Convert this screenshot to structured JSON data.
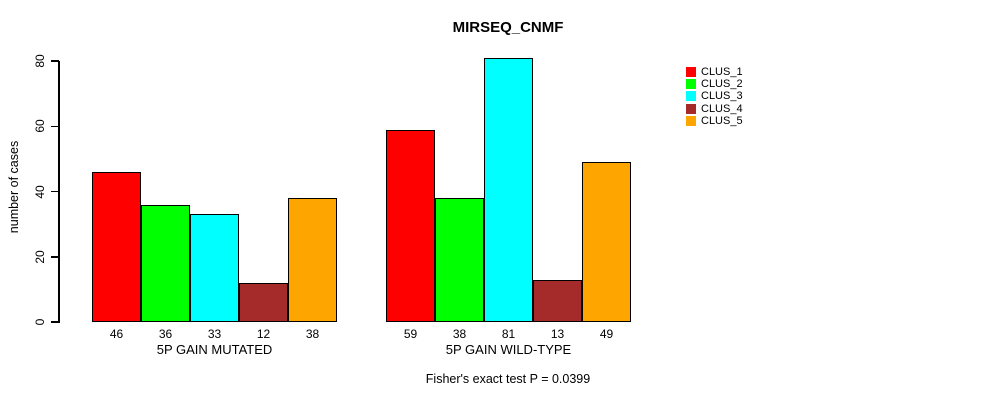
{
  "title": "MIRSEQ_CNMF",
  "y_axis": {
    "label": "number of cases",
    "ticks": [
      "0",
      "20",
      "40",
      "60",
      "80"
    ]
  },
  "footer": "Fisher's exact test P = 0.0399",
  "legend": {
    "items": [
      {
        "label": "CLUS_1",
        "color": "#FF0000"
      },
      {
        "label": "CLUS_2",
        "color": "#00FF00"
      },
      {
        "label": "CLUS_3",
        "color": "#00FFFF"
      },
      {
        "label": "CLUS_4",
        "color": "#A52A2A"
      },
      {
        "label": "CLUS_5",
        "color": "#FFA500"
      }
    ]
  },
  "chart_data": {
    "type": "bar",
    "title": "MIRSEQ_CNMF",
    "xlabel": "",
    "ylabel": "number of cases",
    "ylim": [
      0,
      80
    ],
    "yticks": [
      0,
      20,
      40,
      60,
      80
    ],
    "categories": [
      "5P GAIN MUTATED",
      "5P GAIN WILD-TYPE"
    ],
    "series": [
      {
        "name": "CLUS_1",
        "color": "#FF0000",
        "values": [
          46,
          59
        ]
      },
      {
        "name": "CLUS_2",
        "color": "#00FF00",
        "values": [
          36,
          38
        ]
      },
      {
        "name": "CLUS_3",
        "color": "#00FFFF",
        "values": [
          33,
          81
        ]
      },
      {
        "name": "CLUS_4",
        "color": "#A52A2A",
        "values": [
          12,
          13
        ]
      },
      {
        "name": "CLUS_5",
        "color": "#FFA500",
        "values": [
          38,
          49
        ]
      }
    ],
    "bar_value_labels": [
      [
        46,
        36,
        33,
        12,
        38
      ],
      [
        59,
        38,
        81,
        13,
        49
      ]
    ],
    "annotation": "Fisher's exact test P = 0.0399",
    "legend_entries": [
      "CLUS_1",
      "CLUS_2",
      "CLUS_3",
      "CLUS_4",
      "CLUS_5"
    ],
    "legend_position": "top-right",
    "grid": false,
    "bar_border_color": "#000000"
  }
}
